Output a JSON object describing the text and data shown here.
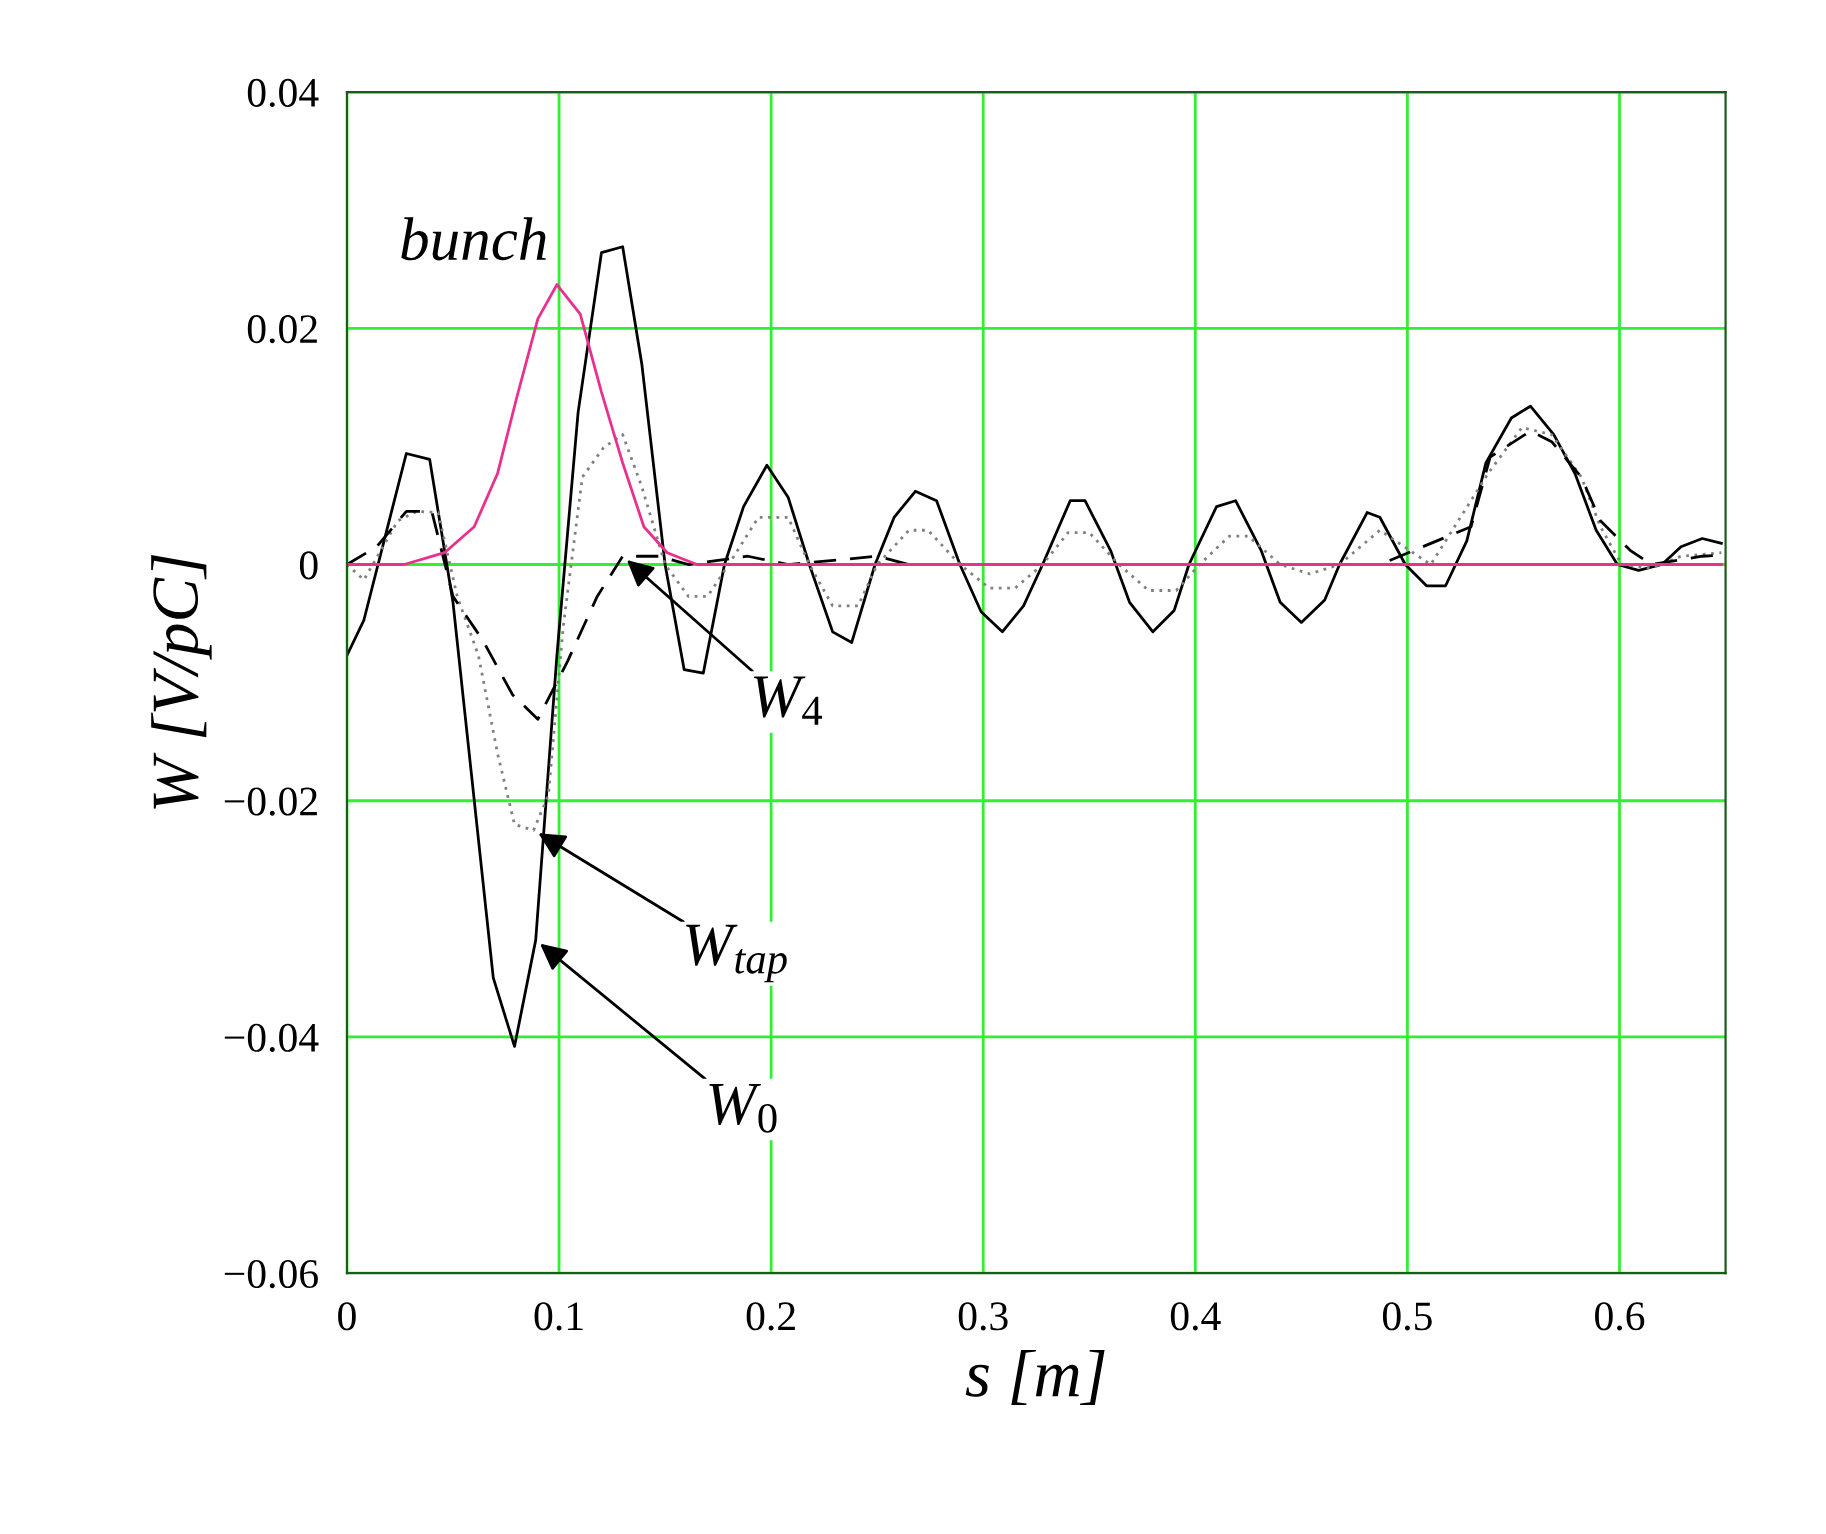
{
  "chart_data": {
    "type": "line",
    "xlabel": "s [m]",
    "ylabel": "W [V/pC]",
    "xlim": [
      0,
      0.65
    ],
    "xticks": [
      0,
      0.1,
      0.2,
      0.3,
      0.4,
      0.5,
      0.6
    ],
    "ylim": [
      -0.06,
      0.04
    ],
    "yticks": [
      {
        "value": -0.06,
        "label": "−0.06"
      },
      {
        "value": -0.04,
        "label": "−0.04"
      },
      {
        "value": -0.02,
        "label": "−0.02"
      },
      0,
      0.02,
      0.04
    ],
    "grid": true,
    "legend": false,
    "series": [
      {
        "color": "#000000",
        "line_style": "solid",
        "x": [
          0,
          0.008,
          0.028,
          0.039,
          0.05,
          0.069,
          0.079,
          0.089,
          0.099,
          0.109,
          0.12,
          0.13,
          0.139,
          0.15,
          0.159,
          0.168,
          0.178,
          0.187,
          0.198,
          0.208,
          0.218,
          0.229,
          0.238,
          0.249,
          0.258,
          0.268,
          0.278,
          0.289,
          0.299,
          0.309,
          0.319,
          0.328,
          0.341,
          0.348,
          0.36,
          0.369,
          0.38,
          0.39,
          0.397,
          0.41,
          0.419,
          0.431,
          0.44,
          0.45,
          0.461,
          0.468,
          0.481,
          0.487,
          0.499,
          0.509,
          0.518,
          0.528,
          0.537,
          0.549,
          0.558,
          0.569,
          0.579,
          0.589,
          0.599,
          0.609,
          0.62,
          0.629,
          0.639,
          0.648
        ],
        "values": [
          -0.0077,
          -0.0047,
          0.0094,
          0.0089,
          -0.0032,
          -0.035,
          -0.0408,
          -0.0318,
          -0.0077,
          0.0129,
          0.0264,
          0.0269,
          0.017,
          0,
          -0.0089,
          -0.0092,
          0,
          0.0049,
          0.0084,
          0.0057,
          0,
          -0.0057,
          -0.0066,
          0,
          0.004,
          0.0062,
          0.0054,
          0,
          -0.004,
          -0.0057,
          -0.0035,
          0,
          0.0054,
          0.0054,
          0.0012,
          -0.0032,
          -0.0057,
          -0.0039,
          0,
          0.0049,
          0.0054,
          0.0012,
          -0.0032,
          -0.0049,
          -0.003,
          0,
          0.0044,
          0.004,
          0,
          -0.0018,
          -0.0018,
          0.002,
          0.0086,
          0.0124,
          0.0134,
          0.011,
          0.0077,
          0.0029,
          0,
          -0.0005,
          0,
          0.0015,
          0.0022,
          0.0018
        ]
      },
      {
        "color": "#808080",
        "line_style": "dotted",
        "x": [
          0,
          0.008,
          0.024,
          0.033,
          0.043,
          0.052,
          0.062,
          0.071,
          0.079,
          0.088,
          0.095,
          0.102,
          0.111,
          0.121,
          0.13,
          0.139,
          0.15,
          0.161,
          0.17,
          0.18,
          0.194,
          0.208,
          0.218,
          0.229,
          0.241,
          0.25,
          0.265,
          0.274,
          0.289,
          0.303,
          0.315,
          0.328,
          0.34,
          0.35,
          0.364,
          0.378,
          0.391,
          0.402,
          0.416,
          0.425,
          0.44,
          0.454,
          0.468,
          0.487,
          0.511,
          0.538,
          0.554,
          0.568,
          0.582,
          0.591,
          0.601,
          0.615,
          0.629,
          0.648
        ],
        "values": [
          0,
          -0.0013,
          0.0037,
          0.0045,
          0.0044,
          -0.0027,
          -0.0077,
          -0.016,
          -0.022,
          -0.0225,
          -0.0195,
          -0.0052,
          0.0074,
          0.0099,
          0.011,
          0.0066,
          0,
          -0.0027,
          -0.0027,
          0,
          0.004,
          0.004,
          0,
          -0.0035,
          -0.0035,
          0,
          0.0029,
          0.0029,
          0,
          -0.002,
          -0.002,
          0,
          0.0027,
          0.0027,
          0,
          -0.0022,
          -0.0022,
          0,
          0.0024,
          0.0024,
          0,
          -0.0008,
          0,
          0.0029,
          0,
          0.0077,
          0.0116,
          0.011,
          0.0074,
          0.0032,
          0,
          -0.0003,
          0.0007,
          0.001
        ]
      },
      {
        "color": "#000000",
        "line_style": "dashed",
        "x": [
          0,
          0.014,
          0.028,
          0.04,
          0.05,
          0.064,
          0.078,
          0.09,
          0.104,
          0.118,
          0.13,
          0.147,
          0.161,
          0.189,
          0.208,
          0.25,
          0.265,
          0.487,
          0.53,
          0.539,
          0.558,
          0.568,
          0.582,
          0.591,
          0.605,
          0.615,
          0.639,
          0.648
        ],
        "values": [
          0,
          0.0015,
          0.0045,
          0.0045,
          -0.0027,
          -0.0064,
          -0.011,
          -0.0131,
          -0.0082,
          -0.0027,
          0.0007,
          0.0007,
          0,
          0.0007,
          0,
          0.0007,
          0,
          0,
          0.0032,
          0.0091,
          0.0113,
          0.0104,
          0.0074,
          0.0037,
          0.0012,
          0,
          0.0007,
          0.0008
        ]
      },
      {
        "color": "#e8308c",
        "line_style": "solid",
        "x": [
          0,
          0.027,
          0.046,
          0.06,
          0.071,
          0.08,
          0.09,
          0.099,
          0.11,
          0.12,
          0.13,
          0.14,
          0.151,
          0.165,
          0.648
        ],
        "values": [
          0,
          0,
          0.001,
          0.0032,
          0.0077,
          0.0141,
          0.0208,
          0.0237,
          0.0212,
          0.0146,
          0.0086,
          0.0032,
          0.001,
          0,
          0
        ]
      }
    ],
    "annotations": [
      "bunch",
      {
        "text": "W$_{4}$",
        "x": 0.13,
        "y": 0.0007
      },
      {
        "text": "W$_{tap}$",
        "x": 0.088,
        "y": -0.0225
      },
      {
        "text": "W$_{0}$",
        "x": 0.089,
        "y": -0.0318
      }
    ]
  }
}
